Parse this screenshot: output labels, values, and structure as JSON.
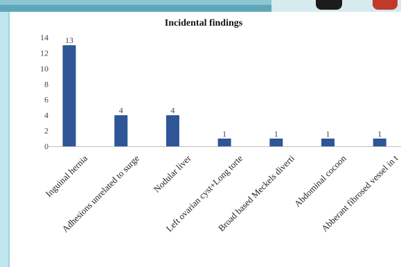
{
  "chart_data": {
    "type": "bar",
    "title": "Incidental findings",
    "categories": [
      "Inguinal hernia",
      "Adhesions unrelated to surge",
      "Nodular liver",
      "Left ovarian cyst+Long torte",
      "Broad based Meckels diverti",
      "Abdominal cocoon",
      "Abberant fibrosed vessel in t"
    ],
    "values": [
      13,
      4,
      4,
      1,
      1,
      1,
      1
    ],
    "data_labels": [
      "13",
      "4",
      "4",
      "1",
      "1",
      "1",
      "1"
    ],
    "yticks": [
      "0",
      "2",
      "4",
      "6",
      "8",
      "10",
      "12",
      "14"
    ],
    "ylim": [
      0,
      14
    ],
    "xlabel": "",
    "ylabel": "",
    "grid": false,
    "legend": "none",
    "colors": {
      "bar": "#2e5597",
      "axis": "#bfbfbf"
    }
  }
}
